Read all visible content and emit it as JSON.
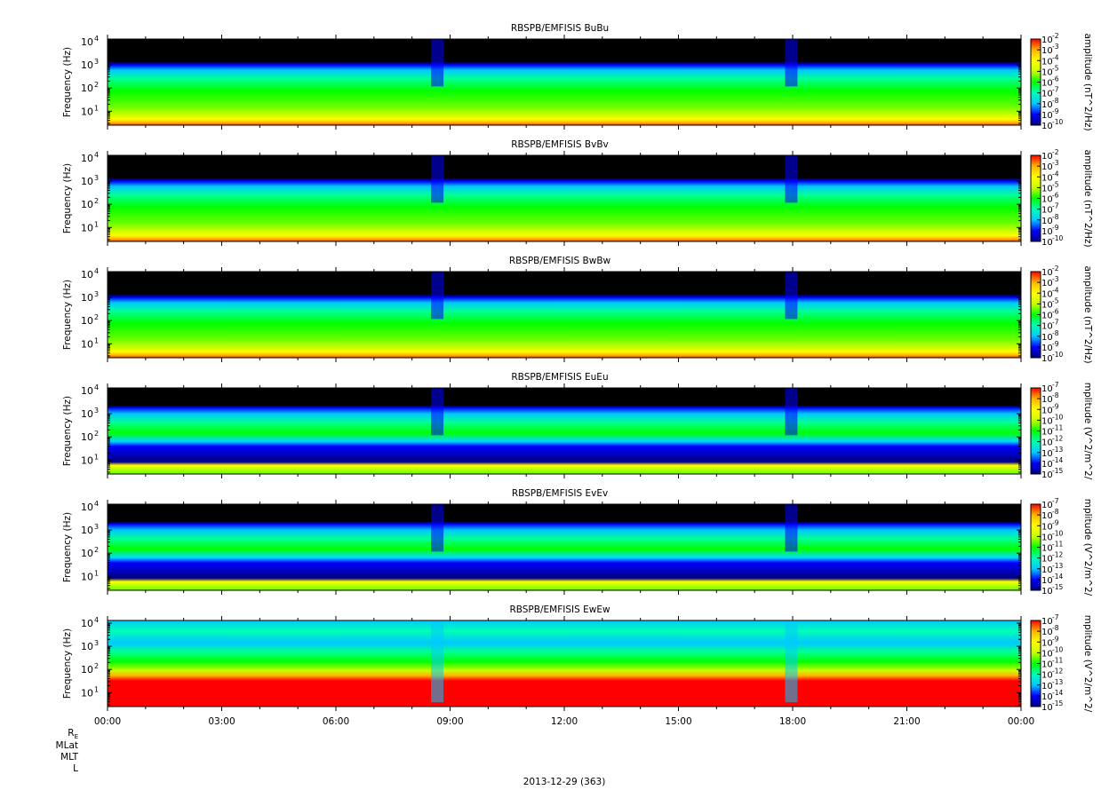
{
  "chart_data": {
    "type": "heatmap",
    "x_ticks": [
      "00:00",
      "03:00",
      "06:00",
      "09:00",
      "12:00",
      "15:00",
      "18:00",
      "21:00",
      "00:00"
    ],
    "xlim_hours": [
      0,
      24
    ],
    "ylim_hz": [
      2.5,
      13000
    ],
    "y_scale": "log",
    "ylabel": "Frequency (Hz)",
    "date_label": "2013-12-29 (363)",
    "ephemeris_rows": [
      "R",
      "MLat",
      "MLT",
      "L"
    ],
    "ephemeris_R_subscript": "E",
    "colormap": [
      "#000080",
      "#0000ff",
      "#00c8ff",
      "#00ffb4",
      "#00ff00",
      "#c8ff00",
      "#ffff00",
      "#ffb400",
      "#ff0000"
    ],
    "panels": [
      {
        "title": "RBSPB/EMFISIS  BuBu",
        "y_ticks": [
          {
            "base": "10",
            "exp": "1",
            "hz": 10
          },
          {
            "base": "10",
            "exp": "2",
            "hz": 100
          },
          {
            "base": "10",
            "exp": "3",
            "hz": 1000
          },
          {
            "base": "10",
            "exp": "4",
            "hz": 10000
          }
        ],
        "colorbar_label": "amplitude (nT^2/Hz)",
        "colorbar_ticks": [
          "-2",
          "-3",
          "-4",
          "-5",
          "-6",
          "-7",
          "-8",
          "-9",
          "-10"
        ]
      },
      {
        "title": "RBSPB/EMFISIS  BvBv",
        "y_ticks": [
          {
            "base": "10",
            "exp": "1",
            "hz": 10
          },
          {
            "base": "10",
            "exp": "2",
            "hz": 100
          },
          {
            "base": "10",
            "exp": "3",
            "hz": 1000
          },
          {
            "base": "10",
            "exp": "4",
            "hz": 10000
          }
        ],
        "colorbar_label": "amplitude (nT^2/Hz)",
        "colorbar_ticks": [
          "-2",
          "-3",
          "-4",
          "-5",
          "-6",
          "-7",
          "-8",
          "-9",
          "-10"
        ]
      },
      {
        "title": "RBSPB/EMFISIS  BwBw",
        "y_ticks": [
          {
            "base": "10",
            "exp": "1",
            "hz": 10
          },
          {
            "base": "10",
            "exp": "2",
            "hz": 100
          },
          {
            "base": "10",
            "exp": "3",
            "hz": 1000
          },
          {
            "base": "10",
            "exp": "4",
            "hz": 10000
          }
        ],
        "colorbar_label": "amplitude (nT^2/Hz)",
        "colorbar_ticks": [
          "-2",
          "-3",
          "-4",
          "-5",
          "-6",
          "-7",
          "-8",
          "-9",
          "-10"
        ]
      },
      {
        "title": "RBSPB/EMFISIS  EuEu",
        "y_ticks": [
          {
            "base": "10",
            "exp": "1",
            "hz": 10
          },
          {
            "base": "10",
            "exp": "2",
            "hz": 100
          },
          {
            "base": "10",
            "exp": "3",
            "hz": 1000
          },
          {
            "base": "10",
            "exp": "4",
            "hz": 10000
          }
        ],
        "colorbar_label": "mplitude (V^2/m^2/",
        "colorbar_ticks": [
          "-7",
          "-8",
          "-9",
          "-10",
          "-11",
          "-12",
          "-13",
          "-14",
          "-15"
        ]
      },
      {
        "title": "RBSPB/EMFISIS  EvEv",
        "y_ticks": [
          {
            "base": "10",
            "exp": "1",
            "hz": 10
          },
          {
            "base": "10",
            "exp": "2",
            "hz": 100
          },
          {
            "base": "10",
            "exp": "3",
            "hz": 1000
          },
          {
            "base": "10",
            "exp": "4",
            "hz": 10000
          }
        ],
        "colorbar_label": "mplitude (V^2/m^2/",
        "colorbar_ticks": [
          "-7",
          "-8",
          "-9",
          "-10",
          "-11",
          "-12",
          "-13",
          "-14",
          "-15"
        ]
      },
      {
        "title": "RBSPB/EMFISIS  EwEw",
        "y_ticks": [
          {
            "base": "10",
            "exp": "1",
            "hz": 10
          },
          {
            "base": "10",
            "exp": "2",
            "hz": 100
          },
          {
            "base": "10",
            "exp": "3",
            "hz": 1000
          },
          {
            "base": "10",
            "exp": "4",
            "hz": 10000
          }
        ],
        "colorbar_label": "mplitude (V^2/m^2/",
        "colorbar_ticks": [
          "-7",
          "-8",
          "-9",
          "-10",
          "-11",
          "-12",
          "-13",
          "-14",
          "-15"
        ]
      }
    ]
  }
}
